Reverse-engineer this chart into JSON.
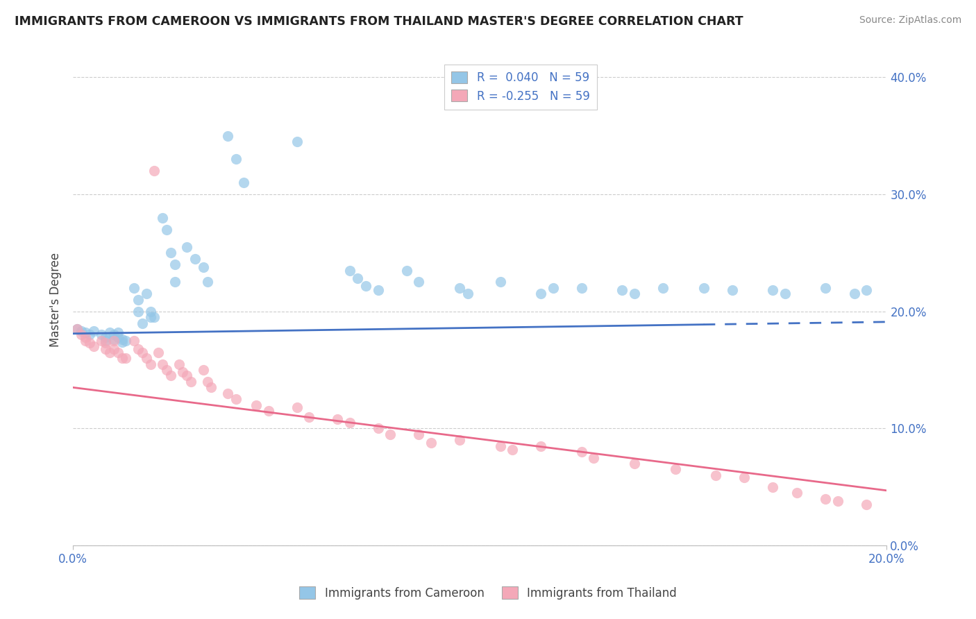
{
  "title": "IMMIGRANTS FROM CAMEROON VS IMMIGRANTS FROM THAILAND MASTER'S DEGREE CORRELATION CHART",
  "source_text": "Source: ZipAtlas.com",
  "ylabel": "Master's Degree",
  "xlim": [
    0.0,
    0.2
  ],
  "ylim": [
    0.0,
    0.42
  ],
  "ytick_values": [
    0.0,
    0.1,
    0.2,
    0.3,
    0.4
  ],
  "r_cameroon": 0.04,
  "r_thailand": -0.255,
  "n_cameroon": 59,
  "n_thailand": 59,
  "color_cameroon": "#94C6E7",
  "color_thailand": "#F4A8B8",
  "line_color_cameroon": "#4472C4",
  "line_color_thailand": "#E8698A",
  "legend_label_cameroon": "Immigrants from Cameroon",
  "legend_label_thailand": "Immigrants from Thailand",
  "background_color": "#ffffff",
  "grid_color": "#cccccc",
  "title_color": "#222222",
  "axis_label_color": "#4472C4",
  "cam_line_start_y": 0.181,
  "cam_line_end_y": 0.191,
  "thai_line_start_y": 0.135,
  "thai_line_end_y": 0.047,
  "cam_x": [
    0.001,
    0.002,
    0.003,
    0.004,
    0.005,
    0.007,
    0.008,
    0.008,
    0.009,
    0.01,
    0.01,
    0.011,
    0.011,
    0.012,
    0.012,
    0.013,
    0.015,
    0.016,
    0.016,
    0.017,
    0.018,
    0.019,
    0.019,
    0.02,
    0.022,
    0.023,
    0.024,
    0.025,
    0.025,
    0.028,
    0.03,
    0.032,
    0.033,
    0.038,
    0.04,
    0.042,
    0.055,
    0.068,
    0.07,
    0.072,
    0.075,
    0.082,
    0.085,
    0.095,
    0.097,
    0.105,
    0.115,
    0.118,
    0.125,
    0.135,
    0.138,
    0.145,
    0.155,
    0.162,
    0.172,
    0.175,
    0.185,
    0.192,
    0.195
  ],
  "cam_y": [
    0.185,
    0.183,
    0.182,
    0.18,
    0.183,
    0.18,
    0.178,
    0.175,
    0.182,
    0.18,
    0.176,
    0.182,
    0.178,
    0.176,
    0.174,
    0.175,
    0.22,
    0.21,
    0.2,
    0.19,
    0.215,
    0.2,
    0.195,
    0.195,
    0.28,
    0.27,
    0.25,
    0.24,
    0.225,
    0.255,
    0.245,
    0.238,
    0.225,
    0.35,
    0.33,
    0.31,
    0.345,
    0.235,
    0.228,
    0.222,
    0.218,
    0.235,
    0.225,
    0.22,
    0.215,
    0.225,
    0.215,
    0.22,
    0.22,
    0.218,
    0.215,
    0.22,
    0.22,
    0.218,
    0.218,
    0.215,
    0.22,
    0.215,
    0.218
  ],
  "thai_x": [
    0.001,
    0.002,
    0.003,
    0.003,
    0.004,
    0.005,
    0.007,
    0.008,
    0.008,
    0.009,
    0.01,
    0.01,
    0.011,
    0.012,
    0.013,
    0.015,
    0.016,
    0.017,
    0.018,
    0.019,
    0.02,
    0.021,
    0.022,
    0.023,
    0.024,
    0.026,
    0.027,
    0.028,
    0.029,
    0.032,
    0.033,
    0.034,
    0.038,
    0.04,
    0.045,
    0.048,
    0.055,
    0.058,
    0.065,
    0.068,
    0.075,
    0.078,
    0.085,
    0.088,
    0.095,
    0.105,
    0.108,
    0.115,
    0.125,
    0.128,
    0.138,
    0.148,
    0.158,
    0.165,
    0.172,
    0.178,
    0.185,
    0.188,
    0.195
  ],
  "thai_y": [
    0.185,
    0.18,
    0.178,
    0.175,
    0.173,
    0.17,
    0.175,
    0.173,
    0.168,
    0.165,
    0.175,
    0.168,
    0.165,
    0.16,
    0.16,
    0.175,
    0.168,
    0.165,
    0.16,
    0.155,
    0.32,
    0.165,
    0.155,
    0.15,
    0.145,
    0.155,
    0.148,
    0.145,
    0.14,
    0.15,
    0.14,
    0.135,
    0.13,
    0.125,
    0.12,
    0.115,
    0.118,
    0.11,
    0.108,
    0.105,
    0.1,
    0.095,
    0.095,
    0.088,
    0.09,
    0.085,
    0.082,
    0.085,
    0.08,
    0.075,
    0.07,
    0.065,
    0.06,
    0.058,
    0.05,
    0.045,
    0.04,
    0.038,
    0.035
  ]
}
